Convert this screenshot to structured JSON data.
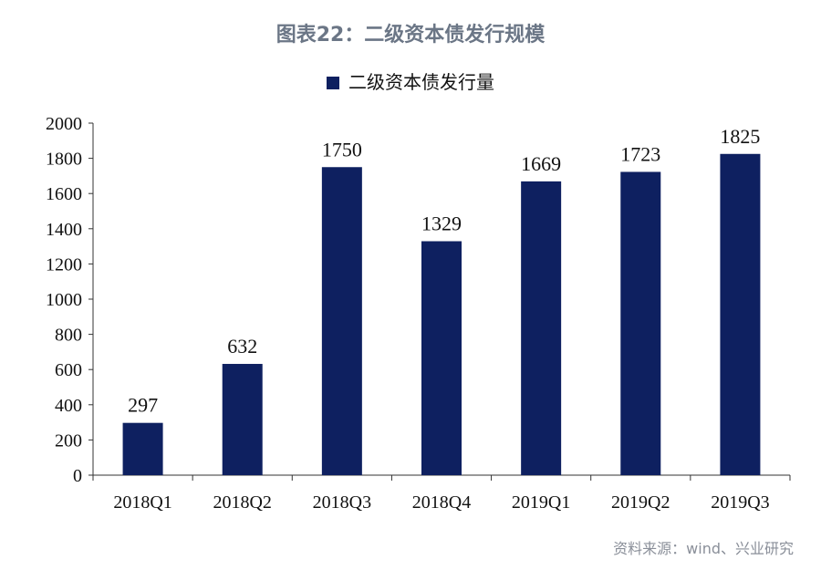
{
  "title": "图表22：二级资本债发行规模",
  "source": "资料来源：wind、兴业研究",
  "colors": {
    "bar": "#0e2060",
    "title": "#6b7686",
    "axis": "#333333"
  },
  "chart_data": {
    "type": "bar",
    "title": "图表22：二级资本债发行规模",
    "categories": [
      "2018Q1",
      "2018Q2",
      "2018Q3",
      "2018Q4",
      "2019Q1",
      "2019Q2",
      "2019Q3"
    ],
    "series": [
      {
        "name": "二级资本债发行量",
        "values": [
          297,
          632,
          1750,
          1329,
          1669,
          1723,
          1825
        ]
      }
    ],
    "ylim": [
      0,
      2000
    ],
    "yticks": [
      0,
      200,
      400,
      600,
      800,
      1000,
      1200,
      1400,
      1600,
      1800,
      2000
    ],
    "xlabel": "",
    "ylabel": "",
    "grid": false,
    "legend": "top-center",
    "data_labels": true
  }
}
